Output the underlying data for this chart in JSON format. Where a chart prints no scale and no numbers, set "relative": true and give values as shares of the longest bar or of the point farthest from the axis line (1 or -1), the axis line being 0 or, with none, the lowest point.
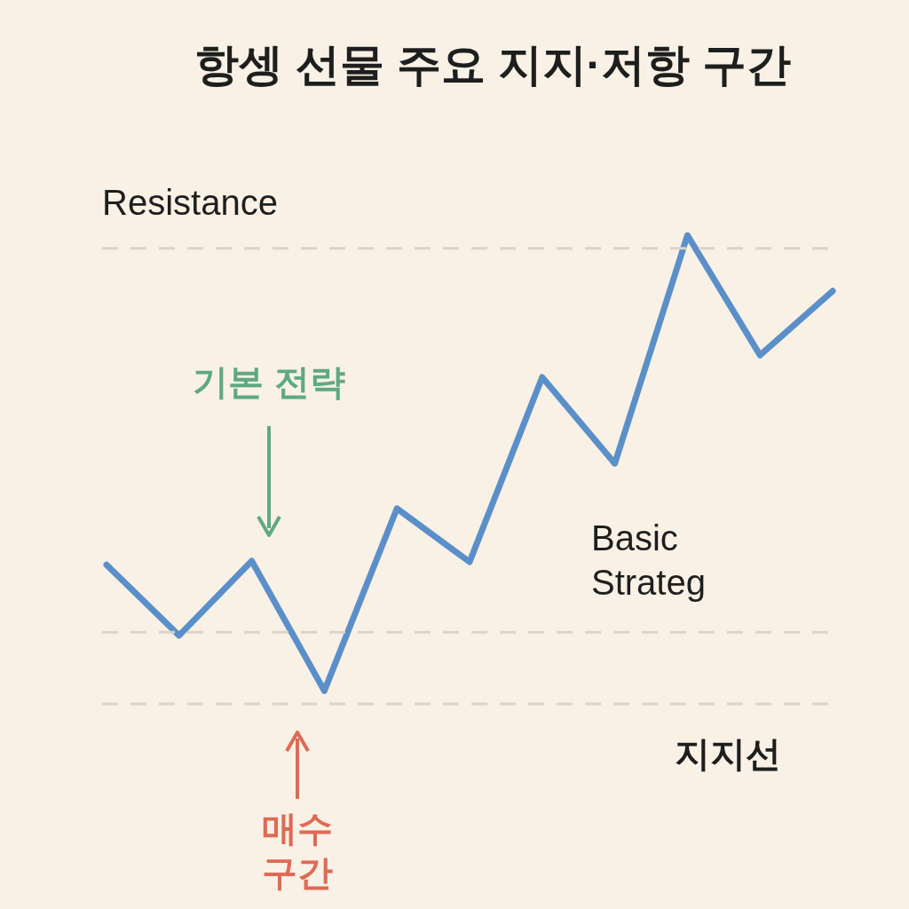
{
  "chart_data": {
    "type": "line",
    "title": "항셍 선물 주요 지지·저항 구간",
    "relative": true,
    "categories": [
      null,
      null,
      null,
      null,
      null,
      null,
      null,
      null,
      null,
      null,
      null
    ],
    "series": [
      {
        "color": "#5b8fc9",
        "values": [
          0.297,
          0.146,
          0.305,
          0.028,
          0.417,
          0.303,
          0.697,
          0.513,
          1,
          0.744,
          0.881
        ]
      }
    ],
    "ref_lines": [
      {
        "axis": "y",
        "value": 0.972,
        "label": "Resistance",
        "color": "#d9d3cb",
        "line_style": "dashed"
      },
      {
        "axis": "y",
        "value": 0.153,
        "color": "#d9d3cb",
        "line_style": "dashed"
      },
      {
        "axis": "y",
        "value": 0,
        "label": "지지선",
        "color": "#d9d3cb",
        "line_style": "dashed"
      }
    ],
    "annotations": [
      "기본 전략",
      "Basic Strateg",
      "매수 구간"
    ]
  }
}
